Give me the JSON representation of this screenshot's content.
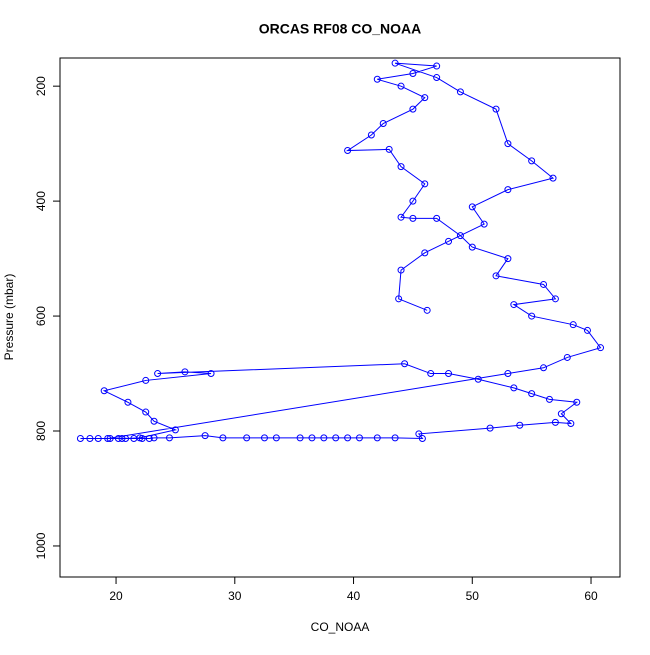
{
  "chart_data": {
    "type": "line",
    "title": "ORCAS RF08 CO_NOAA",
    "xlabel": "CO_NOAA",
    "ylabel": "Pressure (mbar)",
    "x": [
      17,
      17.8,
      18.5,
      19.5,
      20.2,
      20.8,
      21.5,
      22.2,
      22.8,
      23.2,
      24.5,
      27.5,
      29,
      31,
      32.5,
      33.5,
      35.5,
      36.5,
      37.5,
      38.5,
      39.5,
      40.5,
      42,
      43.5,
      45.8,
      45.5,
      51.5,
      54,
      57,
      58.3,
      57.5,
      58.8,
      56.5,
      55,
      53.5,
      50.5,
      48,
      46.5,
      44.3,
      23.5,
      25.8,
      28,
      22.5,
      19,
      21,
      22.5,
      23.2,
      25,
      22,
      20.5,
      19.3,
      53,
      56,
      58,
      60.8,
      59.7,
      58.5,
      55,
      53.5,
      57,
      56,
      52,
      53,
      50,
      49,
      47,
      45,
      44,
      45,
      46,
      44,
      43,
      39.5,
      41.5,
      42.5,
      45,
      46,
      44,
      42,
      45,
      47,
      43.5,
      47,
      49,
      52,
      53,
      55,
      56.8,
      53,
      50,
      51,
      48,
      46,
      44,
      43.8,
      46.2
    ],
    "values": [
      813,
      813,
      813,
      813,
      813,
      813,
      813,
      813,
      813,
      812,
      812,
      808,
      812,
      812,
      812,
      812,
      812,
      812,
      812,
      812,
      812,
      812,
      812,
      812,
      813,
      805,
      795,
      790,
      785,
      787,
      770,
      750,
      745,
      735,
      725,
      710,
      700,
      700,
      683,
      700,
      697,
      700,
      712,
      730,
      750,
      767,
      783,
      798,
      812,
      813,
      813,
      700,
      690,
      672,
      655,
      625,
      615,
      600,
      580,
      570,
      545,
      530,
      500,
      480,
      460,
      430,
      430,
      428,
      400,
      370,
      340,
      310,
      312,
      285,
      265,
      240,
      220,
      200,
      188,
      178,
      165,
      160,
      185,
      210,
      240,
      300,
      330,
      360,
      380,
      410,
      440,
      470,
      490,
      520,
      570,
      590
    ],
    "color": "#0000ff",
    "markers": true,
    "xlim": [
      15.28,
      62.44
    ],
    "ylim": [
      1054,
      151
    ],
    "xticks": [
      20,
      30,
      40,
      50,
      60
    ],
    "yticks": [
      200,
      400,
      600,
      800,
      1000
    ]
  }
}
